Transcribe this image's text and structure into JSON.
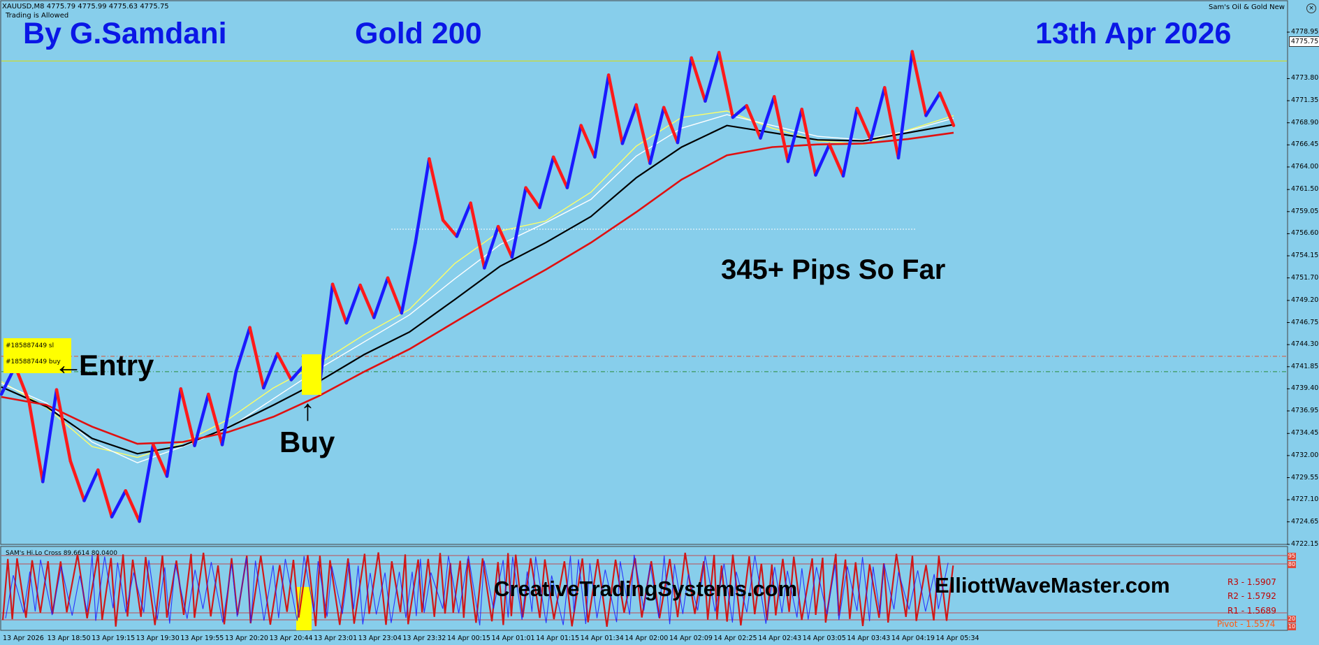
{
  "window": {
    "symbol_info": "XAUUSD,M8  4775.79 4775.99 4775.63 4775.75",
    "trading_status": "Trading is Allowed",
    "expert_name": "Sam's Oil & Gold New",
    "close_icon": "close-icon"
  },
  "overlay_text": {
    "author": "By G.Samdani",
    "strategy": "Gold 200",
    "date": "13th Apr 2026",
    "pips": "345+ Pips So Far",
    "entry": "Entry",
    "buy": "Buy",
    "site1": "CreativeTradingSystems.com",
    "site2": "ElliottWaveMaster.com"
  },
  "trade_labels": {
    "sl": "#185887449 sl",
    "buy": "#185887449 buy"
  },
  "price_axis": {
    "labels": [
      "4778.95",
      "4773.80",
      "4771.35",
      "4768.90",
      "4766.45",
      "4764.00",
      "4761.50",
      "4759.05",
      "4756.60",
      "4754.15",
      "4751.70",
      "4749.20",
      "4746.75",
      "4744.30",
      "4741.85",
      "4739.40",
      "4736.95",
      "4734.45",
      "4732.00",
      "4729.55",
      "4727.10",
      "4724.65",
      "4722.15"
    ],
    "current_price": "4775.75",
    "min": 4722.15,
    "max": 4778.95
  },
  "oscillator": {
    "name": "SAM's Hi.Lo Cross 89.6614 80.0400",
    "tag_top": "95",
    "tag_mid": "80",
    "tag_low1": "20",
    "tag_low2": "10"
  },
  "pivots": {
    "r3": "R3 - 1.5907",
    "r2": "R2 - 1.5792",
    "r1": "R1 - 1.5689",
    "pivot": "Pivot - 1.5574"
  },
  "time_axis": [
    "13 Apr 2026",
    "13 Apr 18:50",
    "13 Apr 19:15",
    "13 Apr 19:30",
    "13 Apr 19:55",
    "13 Apr 20:20",
    "13 Apr 20:44",
    "13 Apr 23:01",
    "13 Apr 23:04",
    "13 Apr 23:32",
    "14 Apr 00:15",
    "14 Apr 01:01",
    "14 Apr 01:15",
    "14 Apr 01:34",
    "14 Apr 02:00",
    "14 Apr 02:09",
    "14 Apr 02:25",
    "14 Apr 02:43",
    "14 Apr 03:05",
    "14 Apr 03:43",
    "14 Apr 04:19",
    "14 Apr 05:34"
  ],
  "colors": {
    "background": "#87CEEB",
    "up_bar": "#1a1aff",
    "down_bar": "#ff1a1a",
    "ma_fast": "#ffff66",
    "ma_white": "#ffffff",
    "ma_black": "#000000",
    "ma_slow": "#e01010",
    "title_blue": "#0a17e6"
  },
  "chart_data": {
    "type": "line",
    "description_series": "Zigzag close path (approximate prices)",
    "x_index": [
      0,
      4,
      8,
      12,
      16,
      20,
      24,
      28,
      32,
      36,
      40,
      44,
      48,
      52,
      56,
      60,
      64,
      68,
      72,
      76,
      80,
      84,
      88,
      92,
      96,
      100,
      104,
      108,
      112,
      116,
      120,
      124,
      128,
      132,
      136,
      140,
      144,
      148,
      152,
      156,
      160,
      164,
      168,
      172,
      176,
      180,
      184,
      188,
      192,
      196,
      200,
      204,
      208,
      212,
      216,
      220,
      224,
      228,
      232,
      236,
      240,
      244,
      248,
      252,
      256,
      260,
      264,
      268,
      272,
      276
    ],
    "prices": [
      4738.8,
      4741.9,
      4738.0,
      4729.1,
      4739.3,
      4731.4,
      4727.0,
      4730.4,
      4725.2,
      4728.1,
      4724.7,
      4733.2,
      4729.7,
      4739.4,
      4733.1,
      4738.8,
      4733.2,
      4741.3,
      4746.2,
      4739.5,
      4743.3,
      4740.4,
      4742.1,
      4739.2,
      4751.0,
      4746.7,
      4750.9,
      4747.3,
      4751.7,
      4747.8,
      4755.6,
      4764.9,
      4758.1,
      4756.3,
      4760.0,
      4752.8,
      4757.4,
      4754.0,
      4761.7,
      4759.5,
      4765.1,
      4761.7,
      4768.6,
      4765.1,
      4774.2,
      4766.6,
      4770.9,
      4764.4,
      4770.6,
      4766.7,
      4776.1,
      4771.3,
      4776.7,
      4769.5,
      4770.8,
      4767.2,
      4771.8,
      4764.6,
      4770.4,
      4763.1,
      4766.5,
      4763.0,
      4770.5,
      4767.0,
      4772.8,
      4765.0,
      4776.8,
      4769.7,
      4772.2,
      4768.6
    ],
    "moving_averages": [
      {
        "name": "MA fast",
        "color": "#ffff66",
        "values": [
          4740.2,
          4737.3,
          4733.0,
          4731.8,
          4733.4,
          4736.0,
          4739.5,
          4742.2,
          4745.4,
          4748.2,
          4753.3,
          4756.9,
          4758.0,
          4761.2,
          4766.3,
          4769.5,
          4770.2,
          4768.3,
          4766.9,
          4766.5,
          4768.1,
          4769.7
        ]
      },
      {
        "name": "MA white",
        "color": "#ffffff",
        "values": [
          4740.0,
          4737.8,
          4733.5,
          4731.2,
          4733.0,
          4735.0,
          4738.3,
          4741.6,
          4744.6,
          4747.6,
          4751.6,
          4755.4,
          4757.8,
          4760.4,
          4765.2,
          4768.3,
          4769.8,
          4768.6,
          4767.4,
          4767.0,
          4768.0,
          4769.4
        ]
      },
      {
        "name": "MA black",
        "color": "#000000",
        "values": [
          4739.6,
          4737.4,
          4733.9,
          4732.2,
          4733.1,
          4735.1,
          4737.6,
          4740.2,
          4743.2,
          4745.7,
          4749.3,
          4753.0,
          4755.6,
          4758.5,
          4762.8,
          4766.2,
          4768.6,
          4767.8,
          4767.0,
          4766.9,
          4767.8,
          4768.7
        ]
      },
      {
        "name": "MA slow",
        "color": "#e01010",
        "values": [
          4738.5,
          4737.6,
          4735.2,
          4733.3,
          4733.5,
          4734.6,
          4736.3,
          4738.6,
          4741.3,
          4743.8,
          4746.8,
          4749.8,
          4752.6,
          4755.6,
          4759.0,
          4762.6,
          4765.3,
          4766.2,
          4766.5,
          4766.6,
          4767.1,
          4767.8
        ]
      }
    ],
    "horizontal_levels": [
      {
        "name": "entry-sl-line",
        "price": 4743.0,
        "color": "#e0522f",
        "style": "dash-dot"
      },
      {
        "name": "entry-buy-line",
        "price": 4741.3,
        "color": "#2a8c3a",
        "style": "dash-dot"
      },
      {
        "name": "current-price-line",
        "price": 4775.75,
        "color": "#dddd00",
        "style": "solid"
      },
      {
        "name": "dotted-white",
        "price": 4757.1,
        "color": "#ffffff",
        "style": "dotted"
      }
    ],
    "ylim": [
      4722.15,
      4778.95
    ],
    "grid": false
  }
}
